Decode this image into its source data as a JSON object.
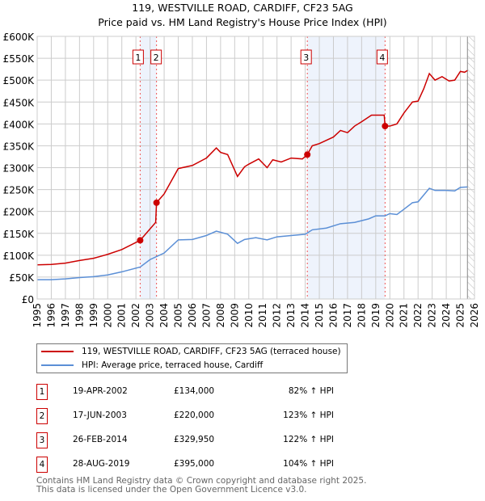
{
  "chart_data": {
    "type": "line",
    "title": "119, WESTVILLE ROAD, CARDIFF, CF23 5AG",
    "subtitle": "Price paid vs. HM Land Registry's House Price Index (HPI)",
    "xlim": [
      1995,
      2026
    ],
    "ylim": [
      0,
      600000
    ],
    "y_ticks": [
      "£0",
      "£50K",
      "£100K",
      "£150K",
      "£200K",
      "£250K",
      "£300K",
      "£350K",
      "£400K",
      "£450K",
      "£500K",
      "£550K",
      "£600K"
    ],
    "x_ticks": [
      "1995",
      "1996",
      "1997",
      "1998",
      "1999",
      "2000",
      "2001",
      "2002",
      "2003",
      "2004",
      "2005",
      "2006",
      "2007",
      "2008",
      "2009",
      "2010",
      "2011",
      "2012",
      "2013",
      "2014",
      "2015",
      "2016",
      "2017",
      "2018",
      "2019",
      "2020",
      "2021",
      "2022",
      "2023",
      "2024",
      "2025",
      "2026"
    ],
    "grid": true,
    "series": [
      {
        "name": "119, WESTVILLE ROAD, CARDIFF, CF23 5AG (terraced house)",
        "color": "#cc0000",
        "x": [
          1995,
          1996,
          1997,
          1998,
          1999,
          2000,
          2001,
          2002.3,
          2003.4,
          2003.46,
          2004,
          2005,
          2006,
          2007,
          2007.7,
          2008,
          2008.5,
          2009.2,
          2009.7,
          2010,
          2010.7,
          2011.3,
          2011.7,
          2012.3,
          2013,
          2013.8,
          2014.15,
          2014.5,
          2015,
          2016,
          2016.5,
          2017,
          2017.5,
          2018,
          2018.7,
          2019.6,
          2019.66,
          2020,
          2020.5,
          2021,
          2021.6,
          2022,
          2022.4,
          2022.8,
          2023.2,
          2023.7,
          2024.2,
          2024.6,
          2025,
          2025.3,
          2025.5
        ],
        "y": [
          78000,
          79000,
          82000,
          88000,
          93000,
          102000,
          113000,
          134000,
          175000,
          220000,
          240000,
          298000,
          305000,
          322000,
          345000,
          335000,
          330000,
          280000,
          302000,
          308000,
          320000,
          300000,
          318000,
          313000,
          322000,
          320000,
          329950,
          350000,
          355000,
          370000,
          385000,
          380000,
          395000,
          405000,
          420000,
          420000,
          395000,
          395000,
          400000,
          425000,
          450000,
          452000,
          480000,
          515000,
          500000,
          508000,
          498000,
          500000,
          520000,
          518000,
          522000
        ]
      },
      {
        "name": "HPI: Average price, terraced house, Cardiff",
        "color": "#5b8fd6",
        "x": [
          1995,
          1996,
          1997,
          1998,
          1999,
          2000,
          2001,
          2002.3,
          2003,
          2004,
          2005,
          2006,
          2007,
          2007.7,
          2008.5,
          2009.2,
          2009.7,
          2010.5,
          2011.3,
          2012,
          2013,
          2014,
          2014.5,
          2015.5,
          2016.5,
          2017.5,
          2018.5,
          2019,
          2019.66,
          2020,
          2020.5,
          2021,
          2021.6,
          2022,
          2022.8,
          2023.2,
          2024,
          2024.6,
          2025,
          2025.5
        ],
        "y": [
          44000,
          44000,
          46000,
          49000,
          51000,
          55000,
          62000,
          73000,
          90000,
          105000,
          135000,
          136000,
          145000,
          155000,
          148000,
          127000,
          136000,
          140000,
          135000,
          142000,
          145000,
          148000,
          158000,
          162000,
          172000,
          175000,
          183000,
          190000,
          190000,
          195000,
          193000,
          205000,
          220000,
          222000,
          253000,
          248000,
          248000,
          247000,
          255000,
          256000
        ]
      }
    ],
    "sales": [
      {
        "n": "1",
        "date": "19-APR-2002",
        "x": 2002.3,
        "price": 134000,
        "price_label": "£134,000",
        "hpi": "82% ↑ HPI"
      },
      {
        "n": "2",
        "date": "17-JUN-2003",
        "x": 2003.46,
        "price": 220000,
        "price_label": "£220,000",
        "hpi": "123% ↑ HPI"
      },
      {
        "n": "3",
        "date": "26-FEB-2014",
        "x": 2014.15,
        "price": 329950,
        "price_label": "£329,950",
        "hpi": "122% ↑ HPI"
      },
      {
        "n": "4",
        "date": "28-AUG-2019",
        "x": 2019.66,
        "price": 395000,
        "price_label": "£395,000",
        "hpi": "104% ↑ HPI"
      }
    ],
    "shaded_ranges": [
      [
        2002.3,
        2003.46
      ],
      [
        2014.15,
        2019.66
      ]
    ],
    "forecast_hatch_from": 2025.5
  },
  "footer": {
    "line1": "Contains HM Land Registry data © Crown copyright and database right 2025.",
    "line2": "This data is licensed under the Open Government Licence v3.0."
  }
}
